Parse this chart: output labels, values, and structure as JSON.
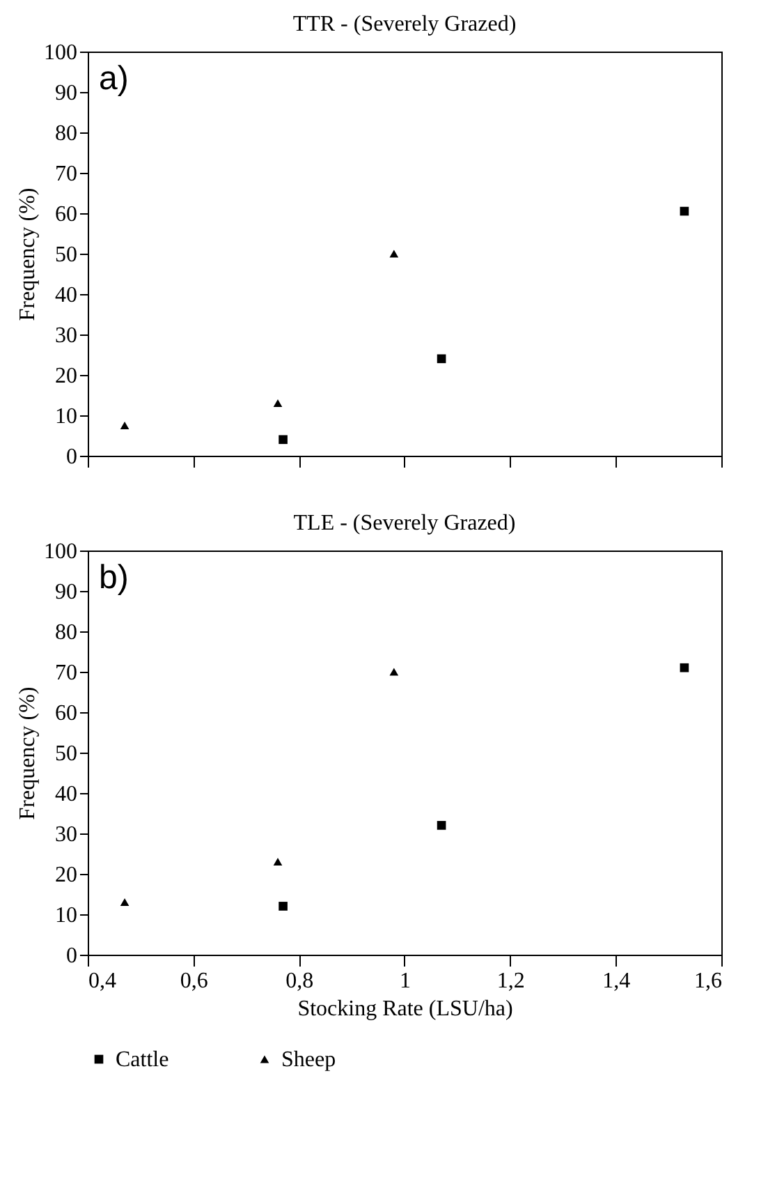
{
  "chart_data": [
    {
      "type": "scatter",
      "title": "TTR - (Severely Grazed)",
      "ylabel": "Frequency (%)",
      "annotations": [
        "a)"
      ],
      "xlim": [
        0.4,
        1.6
      ],
      "xticks": [
        {
          "value": 0.4,
          "label": null
        },
        {
          "value": 0.6,
          "label": null
        },
        {
          "value": 0.8,
          "label": null
        },
        {
          "value": 1,
          "label": null
        },
        {
          "value": 1.2,
          "label": null
        },
        {
          "value": 1.4,
          "label": null
        },
        {
          "value": 1.6,
          "label": null
        }
      ],
      "ylim": [
        0,
        100
      ],
      "yticks": [
        0,
        10,
        20,
        30,
        40,
        50,
        60,
        70,
        80,
        90,
        100
      ],
      "tick_labels": "y",
      "legend": "bottom",
      "series": [
        {
          "name": "Cattle",
          "color": "#000000",
          "marker": "square",
          "x": [
            0.77,
            1.07,
            1.53
          ],
          "values": [
            4,
            24,
            60.5
          ]
        },
        {
          "name": "Sheep",
          "color": "#000000",
          "marker": "triangle",
          "x": [
            0.47,
            0.76,
            0.98
          ],
          "values": [
            7.5,
            13,
            50
          ]
        }
      ]
    },
    {
      "type": "scatter",
      "title": "TLE - (Severely Grazed)",
      "xlabel": "Stocking Rate (LSU/ha)",
      "ylabel": "Frequency (%)",
      "annotations": [
        "b)"
      ],
      "xlim": [
        0.4,
        1.6
      ],
      "xticks": [
        {
          "value": 0.4,
          "label": "0,4"
        },
        {
          "value": 0.6,
          "label": "0,6"
        },
        {
          "value": 0.8,
          "label": "0,8"
        },
        {
          "value": 1,
          "label": "1"
        },
        {
          "value": 1.2,
          "label": "1,2"
        },
        {
          "value": 1.4,
          "label": "1,4"
        },
        {
          "value": 1.6,
          "label": "1,6"
        }
      ],
      "ylim": [
        0,
        100
      ],
      "yticks": [
        0,
        10,
        20,
        30,
        40,
        50,
        60,
        70,
        80,
        90,
        100
      ],
      "legend": "bottom",
      "series": [
        {
          "name": "Cattle",
          "color": "#000000",
          "marker": "square",
          "x": [
            0.77,
            1.07,
            1.53
          ],
          "values": [
            12,
            32,
            71
          ]
        },
        {
          "name": "Sheep",
          "color": "#000000",
          "marker": "triangle",
          "x": [
            0.47,
            0.76,
            0.98
          ],
          "values": [
            13,
            23,
            70
          ]
        }
      ]
    }
  ]
}
